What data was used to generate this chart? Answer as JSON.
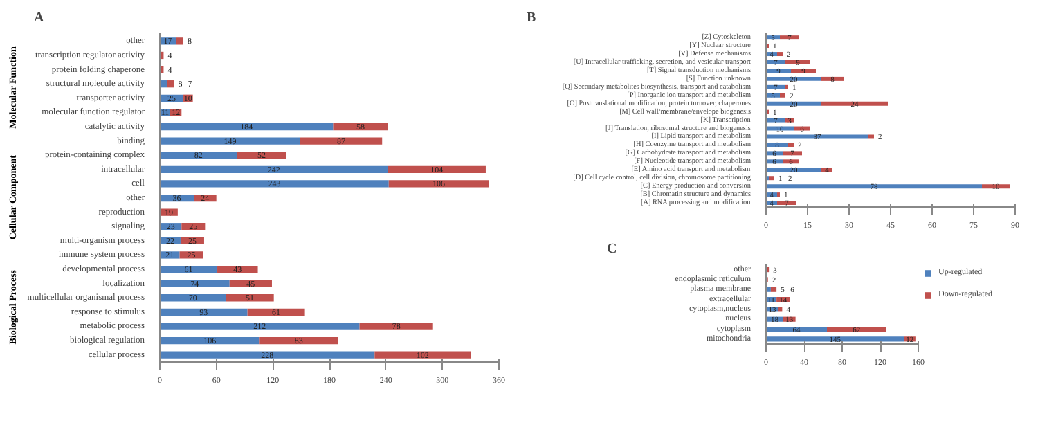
{
  "chart_data": [
    {
      "type": "bar",
      "orientation": "horizontal",
      "stacked": true,
      "data_labels": true,
      "grid": false,
      "legend": false,
      "title": "A",
      "categories": [
        "other",
        "transcription regulator activity",
        "protein folding chaperone",
        "structural molecule activity",
        "transporter activity",
        "molecular function regulator",
        "catalytic activity",
        "binding",
        "protein-containing complex",
        "intracellular",
        "cell",
        "other",
        "reproduction",
        "signaling",
        "multi-organism process",
        "immune system process",
        "developmental process",
        "localization",
        "multicellular organismal process",
        "response to stimulus",
        "metabolic process",
        "biological regulation",
        "cellular process"
      ],
      "series": [
        {
          "color": "#4f81bd",
          "values": [
            17,
            null,
            null,
            8,
            25,
            11,
            184,
            149,
            82,
            242,
            243,
            36,
            null,
            23,
            22,
            21,
            61,
            74,
            70,
            93,
            212,
            106,
            228
          ]
        },
        {
          "color": "#c0504d",
          "values": [
            8,
            4,
            4,
            7,
            10,
            12,
            58,
            87,
            52,
            104,
            106,
            24,
            19,
            25,
            25,
            25,
            43,
            45,
            51,
            61,
            78,
            83,
            102
          ]
        }
      ],
      "xlim": [
        0,
        360
      ],
      "xticks": [
        0,
        60,
        120,
        180,
        240,
        300,
        360
      ],
      "annotations": [
        "Molecular Function",
        "Cellular Component",
        "Biological Process"
      ]
    },
    {
      "type": "bar",
      "orientation": "horizontal",
      "stacked": true,
      "data_labels": true,
      "grid": false,
      "legend": false,
      "title": "B",
      "categories": [
        "[Z] Cytoskeleton",
        "[Y] Nuclear structure",
        "[V] Defense mechanisms",
        "[U] Intracellular trafficking, secretion, and vesicular transport",
        "[T] Signal transduction mechanisms",
        "[S] Function unknown",
        "[Q] Secondary metabolites biosynthesis, transport and catabolism",
        "[P] Inorganic ion transport and metabolism",
        "[O] Posttranslational modification, protein turnover, chaperones",
        "[M] Cell wall/membrane/envelope biogenesis",
        "[K] Transcription",
        "[J] Translation, ribosomal structure and biogenesis",
        "[I] Lipid transport and metabolism",
        "[H] Coenzyme transport and metabolism",
        "[G] Carbohydrate transport and metabolism",
        "[F] Nucleotide transport and metabolism",
        "[E] Amino acid transport and metabolism",
        "[D] Cell cycle control, cell division, chromosome partitioning",
        "[C] Energy production and conversion",
        "[B] Chromatin structure and dynamics",
        "[A] RNA processing and modification"
      ],
      "series": [
        {
          "color": "#4f81bd",
          "values": [
            5,
            null,
            4,
            7,
            9,
            20,
            7,
            5,
            20,
            null,
            7,
            10,
            37,
            8,
            6,
            6,
            20,
            1,
            78,
            4,
            4
          ]
        },
        {
          "color": "#c0504d",
          "values": [
            7,
            1,
            2,
            9,
            9,
            8,
            1,
            2,
            24,
            1,
            3,
            6,
            2,
            2,
            7,
            6,
            4,
            2,
            10,
            1,
            7
          ]
        }
      ],
      "xlim": [
        0,
        90
      ],
      "xticks": [
        0,
        15,
        30,
        45,
        60,
        75,
        90
      ]
    },
    {
      "type": "bar",
      "orientation": "horizontal",
      "stacked": true,
      "data_labels": true,
      "grid": false,
      "legend": "right",
      "title": "C",
      "categories": [
        "other",
        "endoplasmic reticulum",
        "plasma membrane",
        "extracellular",
        "cytoplasm,nucleus",
        "nucleus",
        "cytoplasm",
        "mitochondria"
      ],
      "series": [
        {
          "name": "Up-regulated",
          "color": "#4f81bd",
          "values": [
            null,
            null,
            5,
            11,
            13,
            18,
            64,
            145
          ]
        },
        {
          "name": "Down-regulated",
          "color": "#c0504d",
          "values": [
            3,
            2,
            6,
            14,
            4,
            13,
            62,
            12
          ]
        }
      ],
      "xlim": [
        0,
        160
      ],
      "xticks": [
        0,
        40,
        80,
        120,
        160
      ]
    }
  ]
}
